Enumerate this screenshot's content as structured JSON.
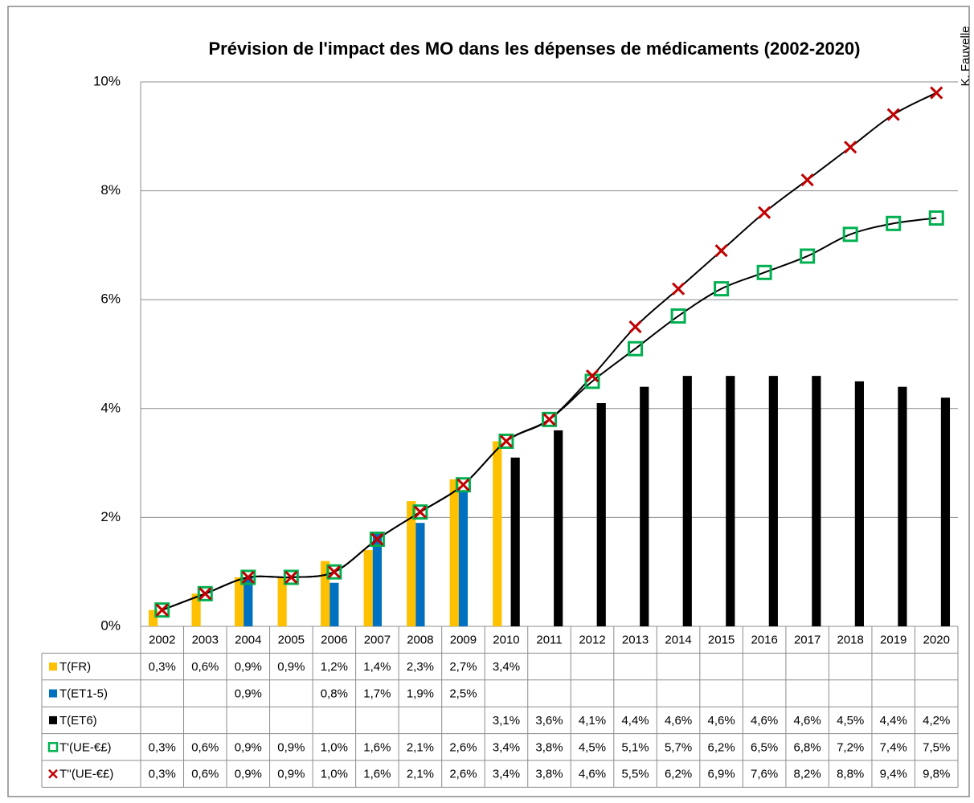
{
  "chart_data": {
    "type": "bar-line-table",
    "title": "Prévision de l'impact des MO dans les dépenses de médicaments (2002-2020)",
    "author": "K. Fauvelle",
    "categories": [
      "2002",
      "2003",
      "2004",
      "2005",
      "2006",
      "2007",
      "2008",
      "2009",
      "2010",
      "2011",
      "2012",
      "2013",
      "2014",
      "2015",
      "2016",
      "2017",
      "2018",
      "2019",
      "2020"
    ],
    "ylim": [
      0,
      10
    ],
    "yticks": [
      {
        "value": 0,
        "label": "0%"
      },
      {
        "value": 2,
        "label": "2%"
      },
      {
        "value": 4,
        "label": "4%"
      },
      {
        "value": 6,
        "label": "6%"
      },
      {
        "value": 8,
        "label": "8%"
      },
      {
        "value": 10,
        "label": "10%"
      }
    ],
    "grid": true,
    "series": [
      {
        "name": "T(FR)",
        "kind": "bar",
        "color": "#ffc000",
        "values": [
          0.3,
          0.6,
          0.9,
          0.9,
          1.2,
          1.4,
          2.3,
          2.7,
          3.4,
          null,
          null,
          null,
          null,
          null,
          null,
          null,
          null,
          null,
          null
        ],
        "value_labels": [
          "0,3%",
          "0,6%",
          "0,9%",
          "0,9%",
          "1,2%",
          "1,4%",
          "2,3%",
          "2,7%",
          "3,4%",
          null,
          null,
          null,
          null,
          null,
          null,
          null,
          null,
          null,
          null
        ]
      },
      {
        "name": "T(ET1-5)",
        "kind": "bar",
        "color": "#0070c0",
        "values": [
          null,
          null,
          0.9,
          null,
          0.8,
          1.7,
          1.9,
          2.5,
          null,
          null,
          null,
          null,
          null,
          null,
          null,
          null,
          null,
          null,
          null
        ],
        "value_labels": [
          null,
          null,
          "0,9%",
          null,
          "0,8%",
          "1,7%",
          "1,9%",
          "2,5%",
          null,
          null,
          null,
          null,
          null,
          null,
          null,
          null,
          null,
          null,
          null
        ]
      },
      {
        "name": "T(ET6)",
        "kind": "bar",
        "color": "#000000",
        "values": [
          null,
          null,
          null,
          null,
          null,
          null,
          null,
          null,
          3.1,
          3.6,
          4.1,
          4.4,
          4.6,
          4.6,
          4.6,
          4.6,
          4.5,
          4.4,
          4.2
        ],
        "value_labels": [
          null,
          null,
          null,
          null,
          null,
          null,
          null,
          null,
          "3,1%",
          "3,6%",
          "4,1%",
          "4,4%",
          "4,6%",
          "4,6%",
          "4,6%",
          "4,6%",
          "4,5%",
          "4,4%",
          "4,2%"
        ]
      },
      {
        "name": "T'(UE-€£)",
        "kind": "square",
        "color": "#00b050",
        "values": [
          0.3,
          0.6,
          0.9,
          0.9,
          1.0,
          1.6,
          2.1,
          2.6,
          3.4,
          3.8,
          4.5,
          5.1,
          5.7,
          6.2,
          6.5,
          6.8,
          7.2,
          7.4,
          7.5
        ],
        "value_labels": [
          "0,3%",
          "0,6%",
          "0,9%",
          "0,9%",
          "1,0%",
          "1,6%",
          "2,1%",
          "2,6%",
          "3,4%",
          "3,8%",
          "4,5%",
          "5,1%",
          "5,7%",
          "6,2%",
          "6,5%",
          "6,8%",
          "7,2%",
          "7,4%",
          "7,5%"
        ]
      },
      {
        "name": "T''(UE-€£)",
        "kind": "cross",
        "color": "#c00000",
        "values": [
          0.3,
          0.6,
          0.9,
          0.9,
          1.0,
          1.6,
          2.1,
          2.6,
          3.4,
          3.8,
          4.6,
          5.5,
          6.2,
          6.9,
          7.6,
          8.2,
          8.8,
          9.4,
          9.8
        ],
        "value_labels": [
          "0,3%",
          "0,6%",
          "0,9%",
          "0,9%",
          "1,0%",
          "1,6%",
          "2,1%",
          "2,6%",
          "3,4%",
          "3,8%",
          "4,6%",
          "5,5%",
          "6,2%",
          "6,9%",
          "7,6%",
          "8,2%",
          "8,8%",
          "9,4%",
          "9,8%"
        ]
      }
    ]
  }
}
